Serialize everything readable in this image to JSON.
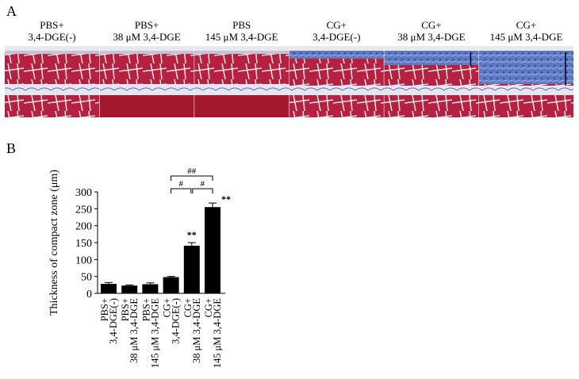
{
  "panels": {
    "a": "A",
    "b": "B"
  },
  "images": [
    {
      "caption": [
        "PBS+",
        "3,4-DGE(-)"
      ]
    },
    {
      "caption": [
        "PBS+",
        "38 μM 3,4-DGE"
      ]
    },
    {
      "caption": [
        "PBS",
        "145 μM 3,4-DGE"
      ]
    },
    {
      "caption": [
        "CG+",
        "3,4-DGE(-)"
      ]
    },
    {
      "caption": [
        "CG+",
        "38 μM 3,4-DGE"
      ]
    },
    {
      "caption": [
        "CG+",
        "145 μM 3,4-DGE"
      ]
    }
  ],
  "chart_data": {
    "type": "bar",
    "y_label": "Thickness of compact zone (μm)",
    "categories": [
      [
        "PBS+",
        "3,4-DGE(-)"
      ],
      [
        "PBS+",
        "38 μM 3,4-DGE"
      ],
      [
        "PBS+",
        "145 μM 3,4-DGE"
      ],
      [
        "CG+",
        "3,4-DGE(-)"
      ],
      [
        "CG+",
        "38 μM 3,4-DGE"
      ],
      [
        "CG+",
        "145 μM 3,4-DGE"
      ]
    ],
    "values": [
      28,
      23,
      27,
      48,
      141,
      255
    ],
    "errors": [
      4,
      2,
      4,
      2,
      9,
      12
    ],
    "markers": [
      null,
      null,
      null,
      null,
      "**",
      "**"
    ],
    "annotations": [
      "##",
      "#",
      "#"
    ],
    "color": "#000000",
    "ylim": [
      0,
      300
    ],
    "yticks": [
      0,
      50,
      100,
      150,
      200,
      250,
      300
    ]
  }
}
